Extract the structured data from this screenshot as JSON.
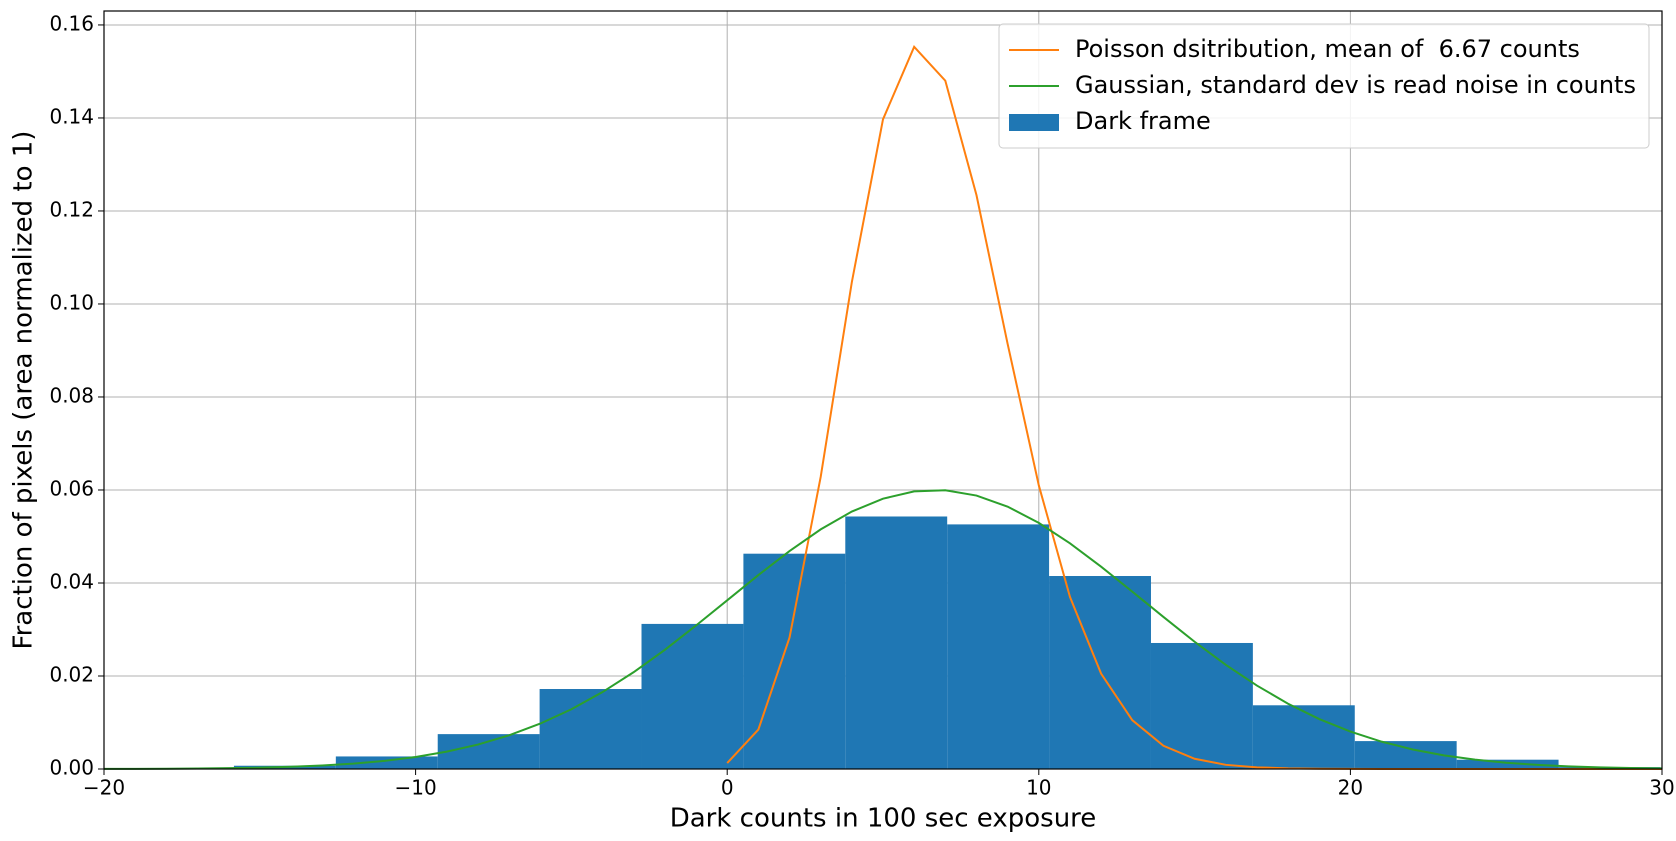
{
  "chart_data": {
    "type": "histogram",
    "xlabel": "Dark counts in 100 sec exposure",
    "ylabel": "Fraction of pixels (area normalized to 1)",
    "xlim": [
      -20,
      30
    ],
    "ylim": [
      0,
      0.163
    ],
    "xticks": [
      {
        "value": -20,
        "label": "−20"
      },
      {
        "value": -10,
        "label": "−10"
      },
      0,
      10,
      20,
      30
    ],
    "yticks": [
      {
        "value": 0,
        "label": "0.00"
      },
      {
        "value": 0.02,
        "label": "0.02"
      },
      {
        "value": 0.04,
        "label": "0.04"
      },
      {
        "value": 0.06,
        "label": "0.06"
      },
      {
        "value": 0.08,
        "label": "0.08"
      },
      {
        "value": 0.1,
        "label": "0.10"
      },
      {
        "value": 0.12,
        "label": "0.12"
      },
      {
        "value": 0.14,
        "label": "0.14"
      },
      {
        "value": 0.16,
        "label": "0.16"
      }
    ],
    "grid": true,
    "legend": "upper right",
    "series": [
      {
        "type": "line",
        "name": "Poisson dsitribution, mean of  6.67 counts",
        "color": "#ff7f0e",
        "x": [
          0,
          1,
          2,
          3,
          4,
          5,
          6,
          7,
          8,
          9,
          10,
          11,
          12,
          13,
          14,
          15,
          16,
          17,
          18,
          19,
          20,
          21,
          22,
          23,
          24,
          25,
          26,
          27,
          28,
          29,
          30
        ],
        "values": [
          0.00127,
          0.00847,
          0.02826,
          0.0628,
          0.1047,
          0.1397,
          0.1553,
          0.148,
          0.1234,
          0.0914,
          0.061,
          0.037,
          0.0205,
          0.0105,
          0.005,
          0.0022,
          0.0009,
          0.00036,
          0.00013,
          5e-05,
          2e-05,
          0,
          0,
          0,
          0,
          0,
          0,
          0,
          0,
          0,
          0
        ]
      },
      {
        "type": "line",
        "name": "Gaussian, standard dev is read noise in counts",
        "color": "#2ca02c",
        "x": [
          -20,
          -19,
          -18,
          -17,
          -16,
          -15,
          -14,
          -13,
          -12,
          -11,
          -10,
          -9,
          -8,
          -7,
          -6,
          -5,
          -4,
          -3,
          -2,
          -1,
          0,
          1,
          2,
          3,
          4,
          5,
          6,
          7,
          8,
          9,
          10,
          11,
          12,
          13,
          14,
          15,
          16,
          17,
          18,
          19,
          20,
          21,
          22,
          23,
          24,
          25,
          26,
          27,
          28,
          29,
          30
        ],
        "values": [
          2e-05,
          3e-05,
          6e-05,
          0.00011,
          0.00018,
          0.0003,
          0.00048,
          0.00075,
          0.00116,
          0.00175,
          0.00259,
          0.00373,
          0.00526,
          0.00725,
          0.00976,
          0.01285,
          0.01655,
          0.02083,
          0.02564,
          0.03086,
          0.03628,
          0.0417,
          0.04687,
          0.05153,
          0.05536,
          0.05813,
          0.0597,
          0.05993,
          0.0588,
          0.05642,
          0.05293,
          0.04853,
          0.0435,
          0.03814,
          0.0327,
          0.02736,
          0.0224,
          0.01794,
          0.01404,
          0.01074,
          0.00804,
          0.00588,
          0.0042,
          0.00294,
          0.00201,
          0.00134,
          0.00088,
          0.00056,
          0.00035,
          0.00021,
          0.00013
        ]
      },
      {
        "type": "histogram",
        "name": "Dark frame",
        "color": "#1f77b4",
        "bins": [
          -15.83,
          -12.56,
          -9.29,
          -6.02,
          -2.75,
          0.52,
          3.79,
          7.06,
          10.33,
          13.6,
          16.87,
          20.14,
          23.41,
          26.68,
          29.95
        ],
        "values": [
          0.0007,
          0.0027,
          0.0075,
          0.0172,
          0.0312,
          0.0463,
          0.0543,
          0.0526,
          0.0415,
          0.0271,
          0.0137,
          0.006,
          0.002,
          0.0004
        ]
      }
    ]
  }
}
